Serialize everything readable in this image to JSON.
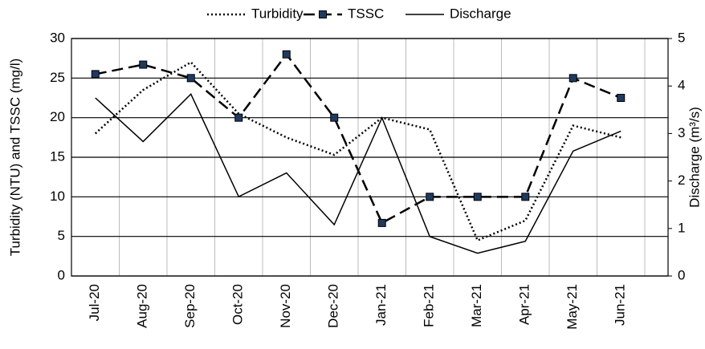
{
  "chart_data": {
    "type": "line",
    "categories": [
      "Jul-20",
      "Aug-20",
      "Sep-20",
      "Oct-20",
      "Nov-20",
      "Dec-20",
      "Jan-21",
      "Feb-21",
      "Mar-21",
      "Apr-21",
      "May-21",
      "Jun-21"
    ],
    "series": [
      {
        "name": "Turbidity",
        "color": "#000000",
        "dash": "dotted",
        "values": [
          18,
          23.5,
          27,
          20.5,
          17.5,
          15.3,
          20,
          18.5,
          4.5,
          7,
          19,
          17.5
        ]
      },
      {
        "name": "TSSC",
        "color": "#000000",
        "dash": "dashed",
        "marker": "square",
        "marker_color": "#1f3a5f",
        "values": [
          25.5,
          26.7,
          25,
          20,
          28,
          20,
          6.7,
          10,
          10,
          10,
          25,
          22.5
        ]
      },
      {
        "name": "Discharge",
        "color": "#000000",
        "dash": "solid",
        "axis": "y2",
        "values": [
          3.75,
          2.83,
          3.83,
          1.67,
          2.17,
          1.08,
          3.33,
          0.83,
          0.48,
          0.73,
          2.63,
          3.05
        ]
      }
    ],
    "y_label": "Turbidity (NTU) and TSSC (mg/l)",
    "y2_label": "Discharge (m³/s)",
    "ylim": [
      0,
      30
    ],
    "yticks": [
      0,
      5,
      10,
      15,
      20,
      25,
      30
    ],
    "y2lim": [
      0,
      5
    ],
    "y2ticks": [
      0,
      1,
      2,
      3,
      4,
      5
    ],
    "grid": true,
    "legend": "top"
  }
}
